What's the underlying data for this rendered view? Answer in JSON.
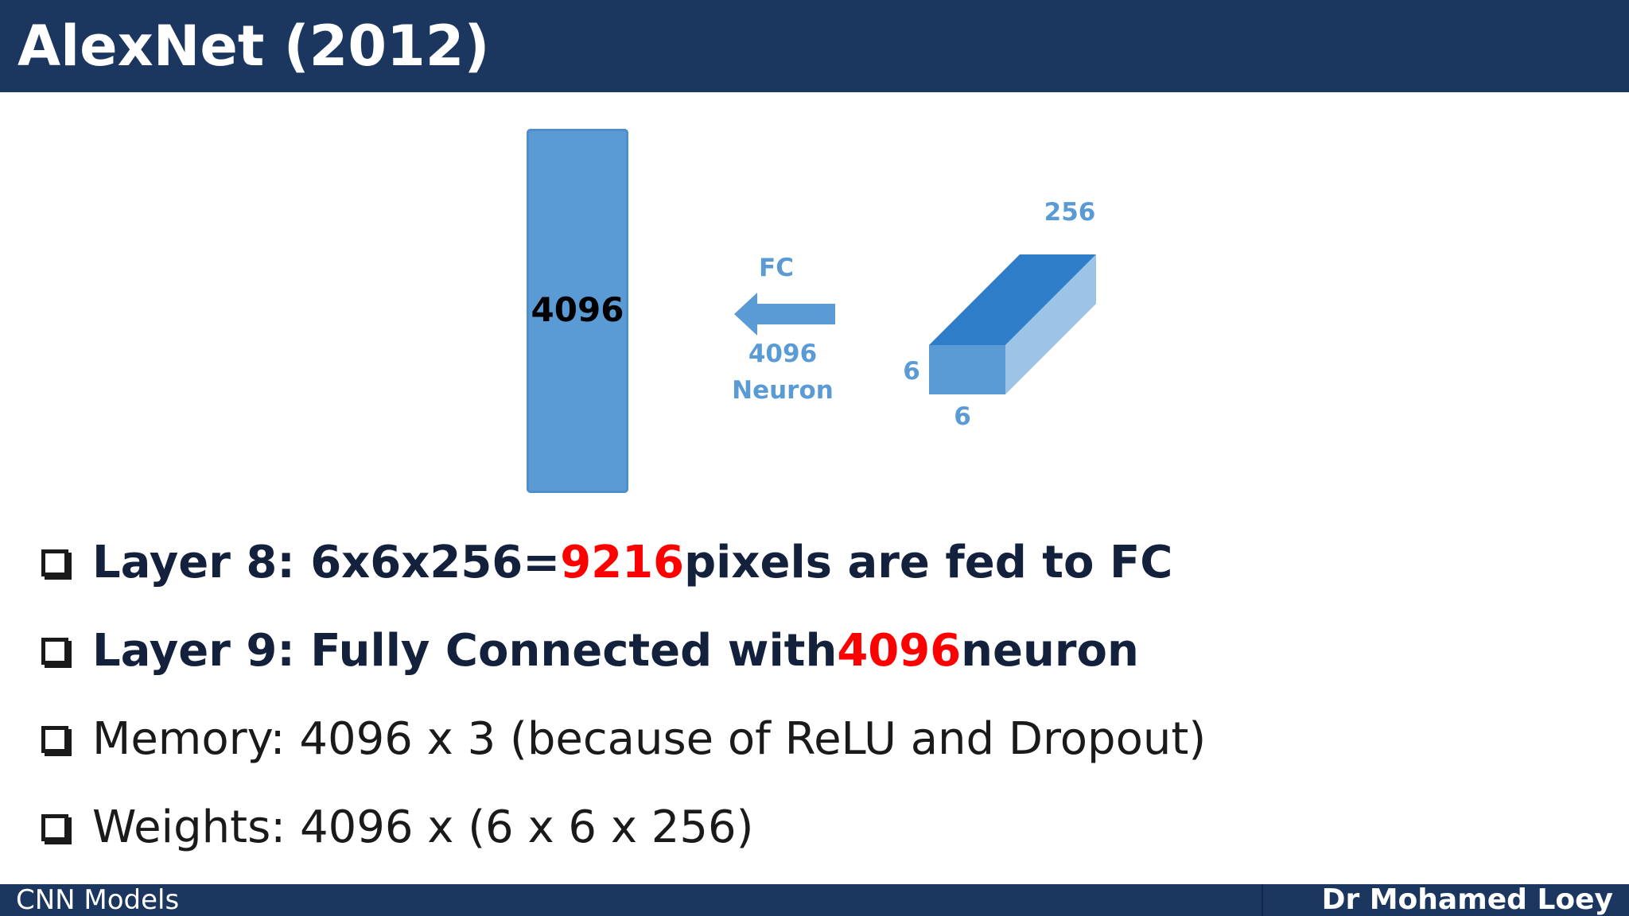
{
  "slide": {
    "title": "AlexNet (2012)"
  },
  "diagram": {
    "output_layer_label": "4096",
    "arrow_label": "FC",
    "arrow_sublabel_number": "4096",
    "arrow_sublabel_unit": "Neuron",
    "input_depth": "256",
    "input_height": "6",
    "input_width": "6",
    "colors": {
      "layer_fill": "#5b9bd5",
      "cube_top": "#2e7dc8",
      "cube_side": "#9dc3e6",
      "label_blue": "#5b9bd5"
    }
  },
  "bullets": [
    {
      "style": "bold",
      "before": "Layer 8: 6x6x256=",
      "highlight": "9216",
      "after": " pixels are fed to FC"
    },
    {
      "style": "bold",
      "before": "Layer 9: Fully Connected with ",
      "highlight": "4096",
      "after": " neuron"
    },
    {
      "style": "light",
      "before": "Memory: 4096 x 3 (because of ReLU and Dropout)",
      "highlight": "",
      "after": ""
    },
    {
      "style": "light",
      "before": "Weights: 4096 x (6 x 6 x 256)",
      "highlight": "",
      "after": ""
    }
  ],
  "footer": {
    "left": "CNN Models",
    "right": "Dr Mohamed Loey"
  },
  "highlight_color": "#ff0000"
}
